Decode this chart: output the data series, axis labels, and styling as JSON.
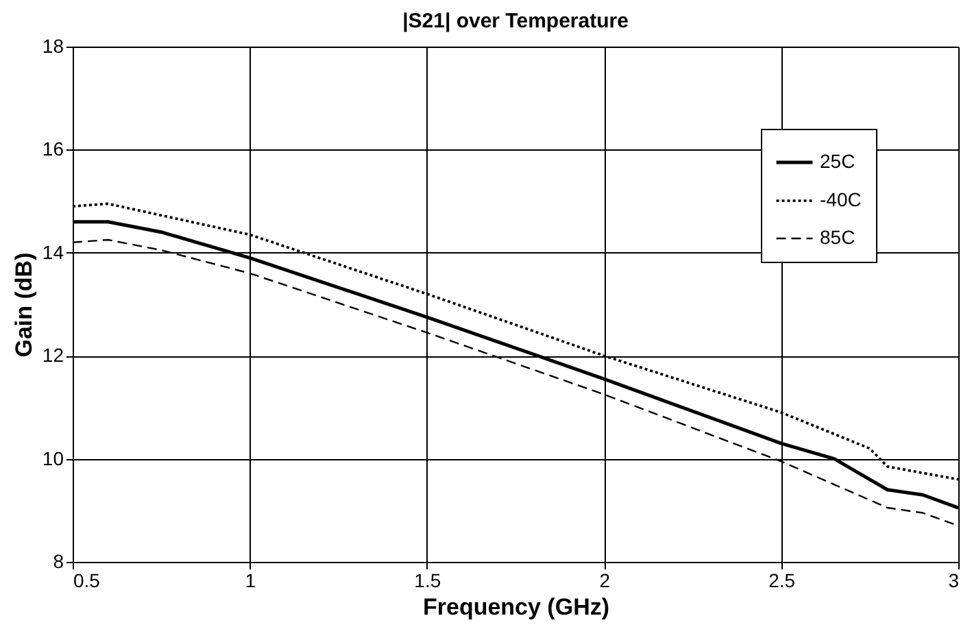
{
  "chart_data": {
    "type": "line",
    "title": "|S21| over Temperature",
    "xlabel": "Frequency (GHz)",
    "ylabel": "Gain (dB)",
    "xlim": [
      0.5,
      3
    ],
    "xticks": [
      0.5,
      1,
      1.5,
      2,
      2.5,
      3
    ],
    "ylim": [
      8,
      18
    ],
    "yticks": [
      8,
      10,
      12,
      14,
      16,
      18
    ],
    "grid": true,
    "legend": "top right",
    "series": [
      {
        "name": "25C",
        "color": "#000000",
        "line_style": "solid",
        "x": [
          0.5,
          0.6,
          0.75,
          1,
          1.5,
          2,
          2.5,
          2.65,
          2.8,
          2.9,
          3
        ],
        "values": [
          14.6,
          14.6,
          14.4,
          13.9,
          12.75,
          11.55,
          10.3,
          10.0,
          9.4,
          9.3,
          9.05
        ]
      },
      {
        "name": "-40C",
        "color": "#000000",
        "line_style": "dotted",
        "x": [
          0.5,
          0.6,
          1,
          1.5,
          2,
          2.5,
          2.75,
          2.8,
          3
        ],
        "values": [
          14.9,
          14.95,
          14.35,
          13.2,
          12.0,
          10.9,
          10.2,
          9.85,
          9.6
        ]
      },
      {
        "name": "85C",
        "color": "#000000",
        "line_style": "dashed",
        "x": [
          0.5,
          0.6,
          0.75,
          1,
          1.5,
          2,
          2.5,
          2.8,
          2.9,
          3
        ],
        "values": [
          14.2,
          14.25,
          14.05,
          13.6,
          12.45,
          11.25,
          9.95,
          9.05,
          8.95,
          8.7
        ]
      }
    ]
  }
}
